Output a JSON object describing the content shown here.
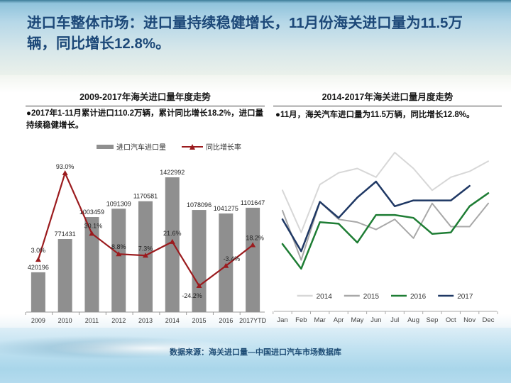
{
  "slide": {
    "title": "进口车整体市场：进口量持续稳健增长，11月份海关进口量为11.5万辆，同比增长12.8%。",
    "footer": "数据来源：海关进口量—中国进口汽车市场数据库"
  },
  "left_panel": {
    "title": "2009-2017年海关进口量年度走势",
    "bullet": "●2017年1-11月累计进口110.2万辆，累计同比增长18.2%，进口量持续稳健增长。"
  },
  "right_panel": {
    "title": "2014-2017年海关进口量月度走势",
    "bullet": "●11月，海关汽车进口量为11.5万辆，同比增长12.8%。"
  },
  "colors": {
    "title_text": "#1c4878",
    "bar": "#8f8f8f",
    "growth_line": "#9b1b1e",
    "axis": "#9a9a9a",
    "label_text": "#222222"
  },
  "chart_data": [
    {
      "type": "bar",
      "title": "2009-2017年海关进口量年度走势",
      "categories": [
        "2009",
        "2010",
        "2011",
        "2012",
        "2013",
        "2014",
        "2015",
        "2016",
        "2017YTD"
      ],
      "series": [
        {
          "name": "进口汽车进口量",
          "type": "bar",
          "color": "#8f8f8f",
          "values": [
            420196,
            771431,
            1003459,
            1091309,
            1170581,
            1422992,
            1078096,
            1041275,
            1101647
          ]
        },
        {
          "name": "同比增长率",
          "type": "line",
          "unit": "%",
          "color": "#9b1b1e",
          "values": [
            3.0,
            93.0,
            30.1,
            8.8,
            7.3,
            21.6,
            -24.2,
            -3.4,
            18.2
          ]
        }
      ],
      "legend_position": "top",
      "value_labels": true,
      "xlabel": "",
      "ylabel": "",
      "grid": false
    },
    {
      "type": "line",
      "title": "2014-2017年海关进口量月度走势",
      "unit": "万辆 (estimated from unlabeled axis)",
      "x": [
        "Jan",
        "Feb",
        "Mar",
        "Apr",
        "May",
        "Jun",
        "Jul",
        "Aug",
        "Sep",
        "Oct",
        "Nov",
        "Dec"
      ],
      "series": [
        {
          "name": "2014",
          "color": "#d7d7d7",
          "values": [
            11.2,
            8.3,
            11.6,
            12.4,
            12.7,
            12.1,
            13.8,
            12.7,
            11.2,
            12.1,
            12.5,
            13.2
          ]
        },
        {
          "name": "2015",
          "color": "#a8a8a8",
          "values": [
            9.8,
            6.4,
            10.4,
            9.2,
            9.0,
            8.5,
            9.2,
            7.9,
            10.3,
            8.7,
            8.7,
            10.3
          ]
        },
        {
          "name": "2016",
          "color": "#1e7d34",
          "values": [
            7.5,
            5.8,
            9.0,
            8.9,
            7.6,
            9.5,
            9.5,
            9.3,
            8.2,
            8.3,
            10.1,
            11.0
          ]
        },
        {
          "name": "2017",
          "color": "#1f3864",
          "values": [
            9.2,
            7.0,
            10.4,
            9.3,
            10.7,
            11.8,
            10.1,
            10.5,
            10.5,
            10.5,
            11.5
          ]
        }
      ],
      "legend_position": "bottom",
      "grid": false
    }
  ]
}
